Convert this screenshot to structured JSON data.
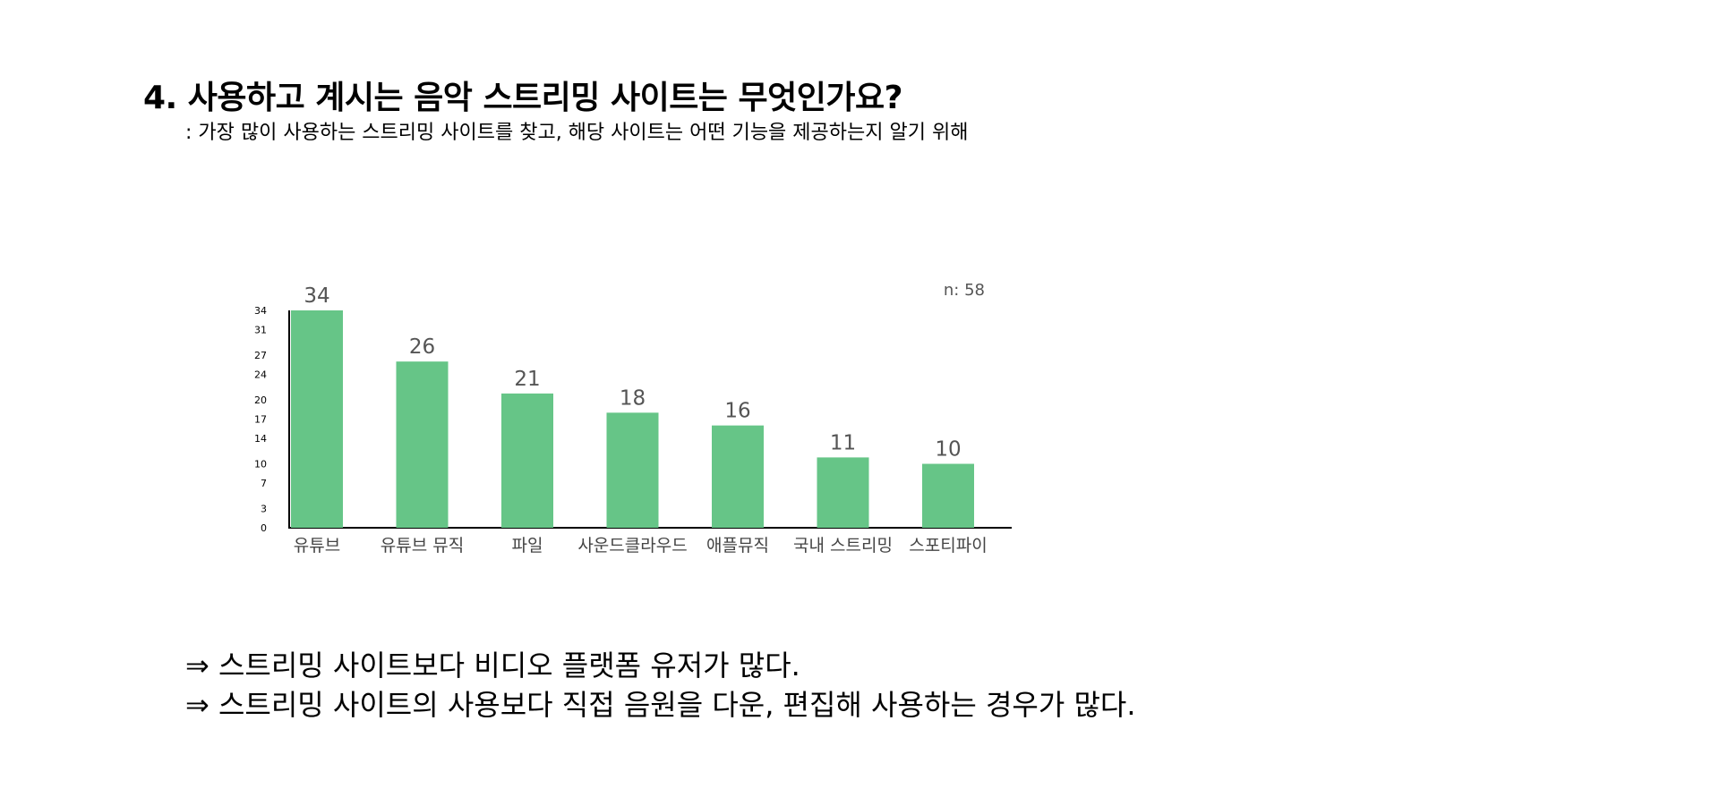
{
  "page": {
    "title": "4. 사용하고 계시는 음악 스트리밍 사이트는 무엇인가요?",
    "subtitle": ": 가장 많이 사용하는 스트리밍 사이트를 찾고, 해당 사이트는 어떤 기능을 제공하는지 알기 위해",
    "conclusions": [
      "⇒ 스트리밍 사이트보다 비디오 플랫폼 유저가 많다.",
      "⇒ 스트리밍 사이트의 사용보다 직접 음원을 다운, 편집해 사용하는 경우가 많다."
    ]
  },
  "chart_data": {
    "type": "bar",
    "categories": [
      "유튜브",
      "유튜브 뮤직",
      "파일",
      "사운드클라우드",
      "애플뮤직",
      "국내 스트리밍",
      "스포티파이"
    ],
    "values": [
      34,
      26,
      21,
      18,
      16,
      11,
      10
    ],
    "ylim": [
      0,
      34
    ],
    "yticks": [
      0,
      3,
      7,
      10,
      14,
      17,
      20,
      24,
      27,
      31,
      34
    ],
    "annotation": "n: 58",
    "grid": false,
    "legend": "none",
    "colors": {
      "bar": "#66c587",
      "value_label": "#555555",
      "axis": "#000000"
    }
  }
}
